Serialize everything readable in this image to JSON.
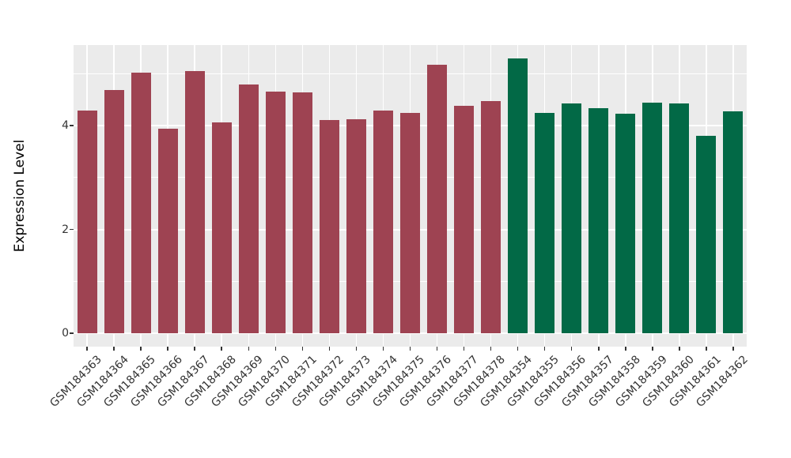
{
  "chart_data": {
    "type": "bar",
    "title": "",
    "xlabel": "",
    "ylabel": "Expression Level",
    "ylim": [
      0,
      5.55
    ],
    "grid": "on",
    "legend": "none",
    "x_tick_rotation": 45,
    "yticks_major": [
      0,
      2,
      4
    ],
    "yticks_minor": [
      1,
      3,
      5
    ],
    "series": [
      {
        "name": "left-group-maroon",
        "color": "#9E4352",
        "categories": [
          "GSM184363",
          "GSM184364",
          "GSM184365",
          "GSM184366",
          "GSM184367",
          "GSM184368",
          "GSM184369",
          "GSM184370",
          "GSM184371",
          "GSM184372",
          "GSM184373",
          "GSM184374",
          "GSM184375",
          "GSM184376",
          "GSM184377",
          "GSM184378"
        ],
        "values": [
          4.29,
          4.68,
          5.02,
          3.94,
          5.05,
          4.06,
          4.79,
          4.65,
          4.64,
          4.1,
          4.12,
          4.29,
          4.24,
          5.17,
          4.38,
          4.47
        ]
      },
      {
        "name": "right-group-green",
        "color": "#026946",
        "categories": [
          "GSM184354",
          "GSM184355",
          "GSM184356",
          "GSM184357",
          "GSM184358",
          "GSM184359",
          "GSM184360",
          "GSM184361",
          "GSM184362"
        ],
        "values": [
          5.29,
          4.24,
          4.43,
          4.33,
          4.23,
          4.44,
          4.43,
          3.8,
          4.27
        ]
      }
    ],
    "colors": {
      "panel_background": "#EBEBEB",
      "gridline": "#FFFFFF",
      "axis_text": "#333333",
      "figure_background": "#FFFFFF"
    }
  }
}
